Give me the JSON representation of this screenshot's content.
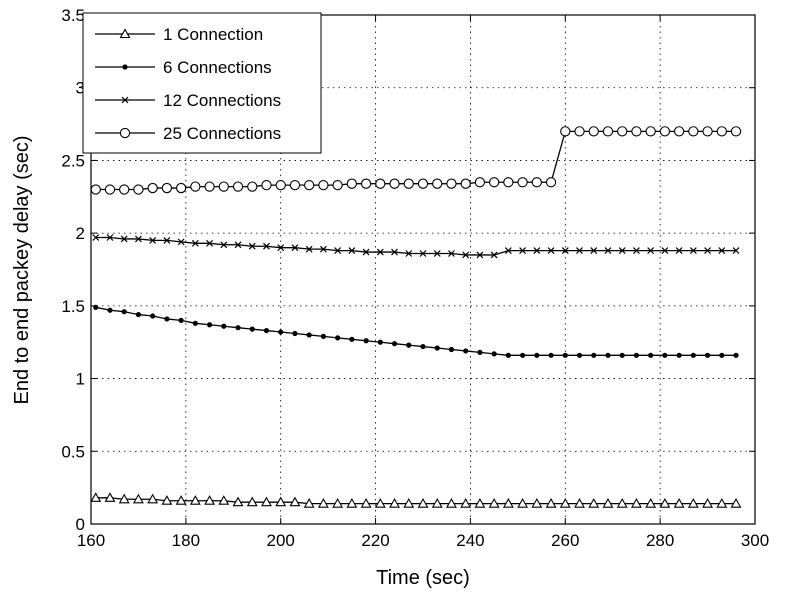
{
  "chart_data": {
    "type": "line",
    "title": "",
    "xlabel": "Time (sec)",
    "ylabel": "End to end packey delay (sec)",
    "xlim": [
      160,
      300
    ],
    "ylim": [
      0,
      3.5
    ],
    "xticks": [
      160,
      180,
      200,
      220,
      240,
      260,
      280,
      300
    ],
    "yticks": [
      0,
      0.5,
      1,
      1.5,
      2,
      2.5,
      3,
      3.5
    ],
    "xtick_labels": [
      "160",
      "180",
      "200",
      "220",
      "240",
      "260",
      "280",
      "300"
    ],
    "ytick_labels": [
      "0",
      "0.5",
      "1",
      "1.5",
      "2",
      "2.5",
      "3",
      "3.5"
    ],
    "grid": true,
    "legend_position": "top-left",
    "x": [
      161,
      164,
      167,
      170,
      173,
      176,
      179,
      182,
      185,
      188,
      191,
      194,
      197,
      200,
      203,
      206,
      209,
      212,
      215,
      218,
      221,
      224,
      227,
      230,
      233,
      236,
      239,
      242,
      245,
      248,
      251,
      254,
      257,
      260,
      263,
      266,
      269,
      272,
      275,
      278,
      281,
      284,
      287,
      290,
      293,
      296
    ],
    "series": [
      {
        "name": "1 Connection",
        "marker": "triangle",
        "values": [
          0.18,
          0.18,
          0.17,
          0.17,
          0.17,
          0.16,
          0.16,
          0.16,
          0.16,
          0.16,
          0.15,
          0.15,
          0.15,
          0.15,
          0.15,
          0.14,
          0.14,
          0.14,
          0.14,
          0.14,
          0.14,
          0.14,
          0.14,
          0.14,
          0.14,
          0.14,
          0.14,
          0.14,
          0.14,
          0.14,
          0.14,
          0.14,
          0.14,
          0.14,
          0.14,
          0.14,
          0.14,
          0.14,
          0.14,
          0.14,
          0.14,
          0.14,
          0.14,
          0.14,
          0.14,
          0.14
        ]
      },
      {
        "name": "6 Connections",
        "marker": "dot",
        "values": [
          1.49,
          1.47,
          1.46,
          1.44,
          1.43,
          1.41,
          1.4,
          1.38,
          1.37,
          1.36,
          1.35,
          1.34,
          1.33,
          1.32,
          1.31,
          1.3,
          1.29,
          1.28,
          1.27,
          1.26,
          1.25,
          1.24,
          1.23,
          1.22,
          1.21,
          1.2,
          1.19,
          1.18,
          1.17,
          1.16,
          1.16,
          1.16,
          1.16,
          1.16,
          1.16,
          1.16,
          1.16,
          1.16,
          1.16,
          1.16,
          1.16,
          1.16,
          1.16,
          1.16,
          1.16,
          1.16
        ]
      },
      {
        "name": "12 Connections",
        "marker": "x",
        "values": [
          1.97,
          1.97,
          1.96,
          1.96,
          1.95,
          1.95,
          1.94,
          1.93,
          1.93,
          1.92,
          1.92,
          1.91,
          1.91,
          1.9,
          1.9,
          1.89,
          1.89,
          1.88,
          1.88,
          1.87,
          1.87,
          1.87,
          1.86,
          1.86,
          1.86,
          1.86,
          1.85,
          1.85,
          1.85,
          1.88,
          1.88,
          1.88,
          1.88,
          1.88,
          1.88,
          1.88,
          1.88,
          1.88,
          1.88,
          1.88,
          1.88,
          1.88,
          1.88,
          1.88,
          1.88,
          1.88
        ]
      },
      {
        "name": "25 Connections",
        "marker": "circle",
        "values": [
          2.3,
          2.3,
          2.3,
          2.3,
          2.31,
          2.31,
          2.31,
          2.32,
          2.32,
          2.32,
          2.32,
          2.32,
          2.33,
          2.33,
          2.33,
          2.33,
          2.33,
          2.33,
          2.34,
          2.34,
          2.34,
          2.34,
          2.34,
          2.34,
          2.34,
          2.34,
          2.34,
          2.35,
          2.35,
          2.35,
          2.35,
          2.35,
          2.35,
          2.7,
          2.7,
          2.7,
          2.7,
          2.7,
          2.7,
          2.7,
          2.7,
          2.7,
          2.7,
          2.7,
          2.7,
          2.7
        ]
      }
    ]
  }
}
